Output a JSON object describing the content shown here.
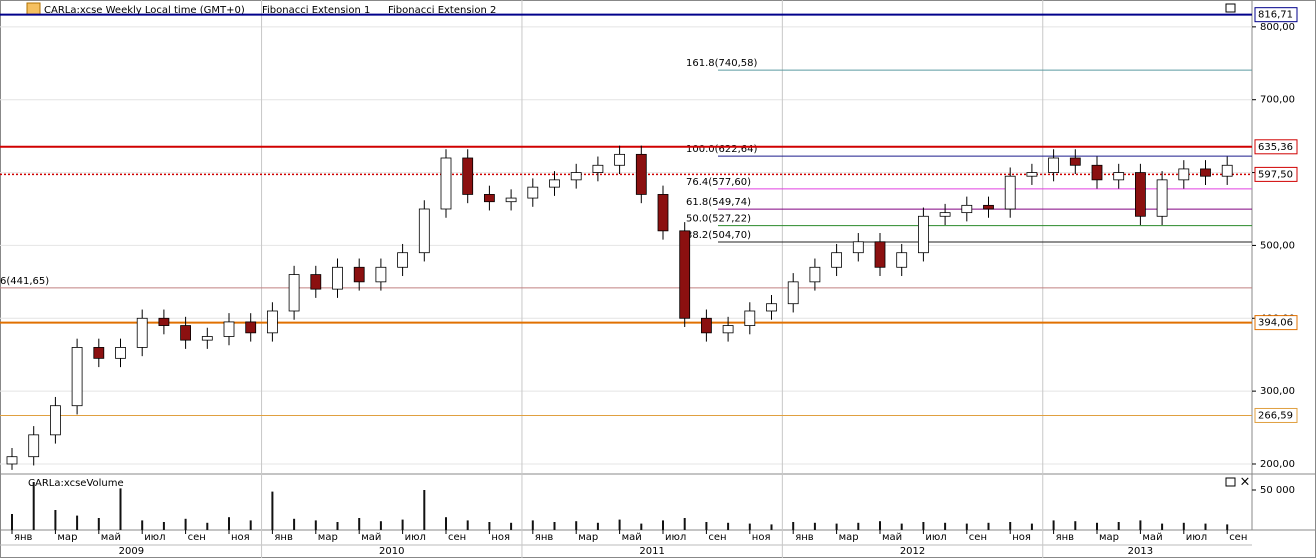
{
  "chart_data": {
    "type": "candlestick",
    "title": "CARLa:xcse Weekly Local time (GMT+0)",
    "tools": [
      "Fibonacci Extension 1",
      "Fibonacci Extension 2"
    ],
    "categories": [
      "янв",
      null,
      "мар",
      null,
      "май",
      null,
      "июл",
      null,
      "сен",
      null,
      "ноя",
      null,
      "янв",
      null,
      "мар",
      null,
      "май",
      null,
      "июл",
      null,
      "сен",
      null,
      "ноя",
      null,
      "янв",
      null,
      "мар",
      null,
      "май",
      null,
      "июл",
      null,
      "сен",
      null,
      "ноя",
      null,
      "янв",
      null,
      "мар",
      null,
      "май",
      null,
      "июл",
      null,
      "сен",
      null,
      "ноя",
      null,
      "янв",
      null,
      "мар",
      null,
      "май",
      null,
      "июл",
      null,
      "сен"
    ],
    "years": [
      "2009",
      "2010",
      "2011",
      "2012",
      "2013"
    ],
    "open": [
      200,
      210,
      240,
      280,
      360,
      345,
      360,
      400,
      390,
      370,
      375,
      395,
      380,
      410,
      460,
      440,
      470,
      450,
      470,
      490,
      550,
      620,
      570,
      560,
      565,
      580,
      590,
      600,
      610,
      625,
      570,
      520,
      400,
      380,
      390,
      410,
      420,
      450,
      470,
      490,
      505,
      470,
      490,
      540,
      545,
      555,
      550,
      595,
      600,
      620,
      610,
      590,
      600,
      540,
      590,
      605,
      595
    ],
    "high": [
      222,
      252,
      292,
      372,
      372,
      372,
      412,
      412,
      402,
      387,
      407,
      407,
      422,
      472,
      472,
      482,
      482,
      482,
      502,
      562,
      632,
      632,
      582,
      577,
      592,
      602,
      612,
      622,
      637,
      637,
      582,
      532,
      412,
      402,
      422,
      432,
      462,
      482,
      502,
      517,
      517,
      502,
      552,
      557,
      567,
      567,
      607,
      612,
      632,
      632,
      622,
      612,
      612,
      602,
      617,
      617,
      622
    ],
    "low": [
      192,
      198,
      228,
      268,
      333,
      333,
      348,
      378,
      358,
      358,
      363,
      368,
      368,
      398,
      428,
      428,
      438,
      438,
      458,
      478,
      538,
      558,
      548,
      548,
      553,
      568,
      578,
      588,
      598,
      558,
      508,
      388,
      368,
      368,
      378,
      398,
      408,
      438,
      458,
      478,
      458,
      458,
      478,
      528,
      533,
      538,
      538,
      583,
      588,
      598,
      578,
      578,
      528,
      528,
      578,
      583,
      583
    ],
    "close": [
      210,
      240,
      280,
      360,
      345,
      360,
      400,
      390,
      370,
      375,
      395,
      380,
      410,
      460,
      440,
      470,
      450,
      470,
      490,
      550,
      620,
      570,
      560,
      565,
      580,
      590,
      600,
      610,
      625,
      570,
      520,
      400,
      380,
      390,
      410,
      420,
      450,
      470,
      490,
      505,
      470,
      490,
      540,
      545,
      555,
      550,
      595,
      600,
      620,
      610,
      590,
      600,
      540,
      590,
      605,
      595,
      610
    ],
    "up_color": "#ffffff",
    "down_color": "#8b1010",
    "ylim": [
      189,
      830
    ],
    "yticks": [
      {
        "value": 200,
        "label": "200,00"
      },
      {
        "value": 300,
        "label": "300,00"
      },
      {
        "value": 400,
        "label": "400,00"
      },
      {
        "value": 500,
        "label": "500,00"
      },
      {
        "value": 600,
        "label": "600,00"
      },
      {
        "value": 700,
        "label": "700,00"
      },
      {
        "value": 800,
        "label": "800,00"
      }
    ],
    "grid": true,
    "levels": [
      {
        "value": 816.71,
        "label": "816,71",
        "color": "#00008b",
        "dash": false,
        "width": 2
      },
      {
        "value": 635.36,
        "label": "635,36",
        "color": "#d00000",
        "dash": false,
        "width": 2
      },
      {
        "value": 597.5,
        "label": "597,50",
        "color": "#d00000",
        "dash": true,
        "width": 1.5
      },
      {
        "value": 394.06,
        "label": "394,06",
        "color": "#e07000",
        "dash": false,
        "width": 2
      },
      {
        "value": 266.59,
        "label": "266,59",
        "color": "#e0a040",
        "dash": false,
        "width": 1
      }
    ],
    "fibonacci": [
      {
        "value": 740.58,
        "label": "161.8(740,58)",
        "color": "#5a9aa0"
      },
      {
        "value": 622.64,
        "label": "100.0(622,64)",
        "color": "#1c1c8c"
      },
      {
        "value": 577.6,
        "label": "76.4(577,60)",
        "color": "#e040e0"
      },
      {
        "value": 549.74,
        "label": "61.8(549,74)",
        "color": "#800080"
      },
      {
        "value": 527.22,
        "label": "50.0(527,22)",
        "color": "#2a8a2a"
      },
      {
        "value": 504.7,
        "label": "38.2(504,70)",
        "color": "#222222"
      },
      {
        "value": 441.65,
        "label": "6(441,65)",
        "color": "#c08080"
      }
    ],
    "volume": {
      "title": "CARLa:xcseVolume",
      "values": [
        20000,
        60000,
        25000,
        18000,
        15000,
        52000,
        12000,
        10000,
        14000,
        9000,
        16000,
        12000,
        48000,
        14000,
        12000,
        10000,
        15000,
        11000,
        13000,
        50000,
        16000,
        12000,
        10000,
        9000,
        12000,
        10000,
        11000,
        9000,
        13000,
        8000,
        12000,
        15000,
        10000,
        9000,
        8000,
        7000,
        10000,
        9000,
        8000,
        9000,
        11000,
        8000,
        10000,
        9000,
        8000,
        9000,
        10000,
        8000,
        12000,
        11000,
        9000,
        10000,
        12000,
        8000,
        9000,
        8000,
        7000
      ],
      "color": "#111111",
      "ylim": [
        0,
        65000
      ],
      "yticks": [
        {
          "value": 50000,
          "label": "50 000"
        }
      ]
    }
  }
}
